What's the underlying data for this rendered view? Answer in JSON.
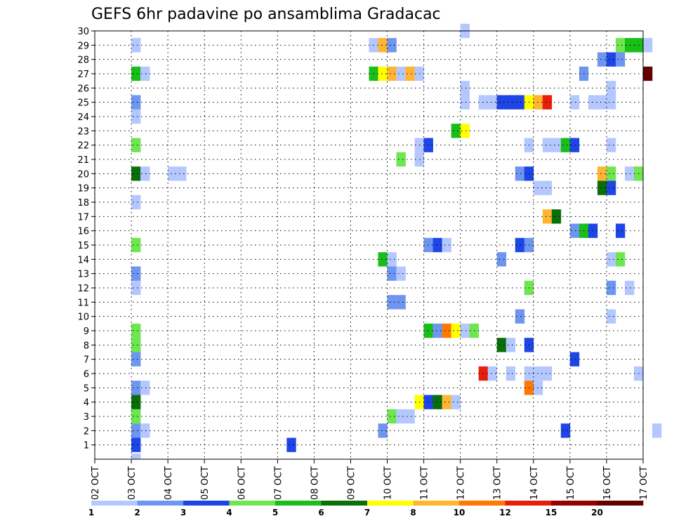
{
  "chart_data": {
    "type": "heatmap",
    "title": "GEFS 6hr padavine po ansamblima Gradacac",
    "x_tick_labels": [
      "02 OCT",
      "03 OCT",
      "04 OCT",
      "05 OCT",
      "06 OCT",
      "07 OCT",
      "08 OCT",
      "09 OCT",
      "10 OCT",
      "11 OCT",
      "12 OCT",
      "13 OCT",
      "14 OCT",
      "15 OCT",
      "16 OCT",
      "17 OCT"
    ],
    "y_tick_labels": [
      "1",
      "2",
      "3",
      "4",
      "5",
      "6",
      "7",
      "8",
      "9",
      "10",
      "11",
      "12",
      "13",
      "14",
      "15",
      "16",
      "17",
      "18",
      "19",
      "20",
      "21",
      "22",
      "23",
      "24",
      "25",
      "26",
      "27",
      "28",
      "29",
      "30"
    ],
    "x_range": [
      "02 OCT 00Z",
      "17 OCT 00Z"
    ],
    "steps_per_day": 4,
    "y_range": [
      0,
      30
    ],
    "grid": true,
    "grid_style": "dotted",
    "colorbar": {
      "placement": "bottom",
      "labels": [
        "1",
        "2",
        "3",
        "4",
        "5",
        "6",
        "7",
        "8",
        "10",
        "12",
        "15",
        "20"
      ],
      "colors": [
        "#b4c8ff",
        "#6e96f0",
        "#1e46e6",
        "#6ee650",
        "#19be19",
        "#0a6e0a",
        "#ffff00",
        "#ffb432",
        "#ff7800",
        "#e61e0a",
        "#960000",
        "#640000"
      ]
    },
    "cells": [
      [
        0,
        4,
        0
      ],
      [
        1,
        4,
        2
      ],
      [
        1,
        21,
        2
      ],
      [
        2,
        4,
        1
      ],
      [
        2,
        5,
        0
      ],
      [
        2,
        31,
        1
      ],
      [
        2,
        51,
        2
      ],
      [
        2,
        61,
        0
      ],
      [
        3,
        4,
        3
      ],
      [
        3,
        32,
        3
      ],
      [
        3,
        33,
        0
      ],
      [
        3,
        34,
        0
      ],
      [
        4,
        4,
        5
      ],
      [
        4,
        35,
        6
      ],
      [
        4,
        36,
        2
      ],
      [
        4,
        37,
        5
      ],
      [
        4,
        38,
        7
      ],
      [
        4,
        39,
        0
      ],
      [
        5,
        4,
        1
      ],
      [
        5,
        5,
        0
      ],
      [
        5,
        47,
        8
      ],
      [
        5,
        48,
        0
      ],
      [
        6,
        42,
        9
      ],
      [
        6,
        43,
        0
      ],
      [
        6,
        45,
        0
      ],
      [
        6,
        47,
        0
      ],
      [
        6,
        48,
        0
      ],
      [
        6,
        49,
        0
      ],
      [
        6,
        59,
        0
      ],
      [
        7,
        4,
        1
      ],
      [
        7,
        52,
        2
      ],
      [
        8,
        4,
        3
      ],
      [
        8,
        44,
        5
      ],
      [
        8,
        45,
        0
      ],
      [
        8,
        47,
        2
      ],
      [
        9,
        4,
        3
      ],
      [
        9,
        36,
        4
      ],
      [
        9,
        37,
        1
      ],
      [
        9,
        38,
        8
      ],
      [
        9,
        39,
        6
      ],
      [
        9,
        40,
        0
      ],
      [
        9,
        41,
        3
      ],
      [
        10,
        46,
        1
      ],
      [
        10,
        56,
        0
      ],
      [
        11,
        32,
        1
      ],
      [
        11,
        33,
        1
      ],
      [
        12,
        4,
        0
      ],
      [
        12,
        47,
        3
      ],
      [
        12,
        56,
        1
      ],
      [
        12,
        58,
        0
      ],
      [
        13,
        4,
        1
      ],
      [
        13,
        32,
        1
      ],
      [
        13,
        33,
        0
      ],
      [
        14,
        31,
        4
      ],
      [
        14,
        32,
        0
      ],
      [
        14,
        44,
        1
      ],
      [
        14,
        56,
        0
      ],
      [
        14,
        57,
        3
      ],
      [
        15,
        4,
        3
      ],
      [
        15,
        36,
        1
      ],
      [
        15,
        37,
        2
      ],
      [
        15,
        38,
        0
      ],
      [
        15,
        46,
        2
      ],
      [
        15,
        47,
        1
      ],
      [
        16,
        52,
        1
      ],
      [
        16,
        53,
        4
      ],
      [
        16,
        54,
        2
      ],
      [
        16,
        57,
        2
      ],
      [
        17,
        49,
        7
      ],
      [
        17,
        50,
        5
      ],
      [
        18,
        4,
        0
      ],
      [
        19,
        48,
        0
      ],
      [
        19,
        49,
        0
      ],
      [
        19,
        55,
        5
      ],
      [
        19,
        56,
        2
      ],
      [
        20,
        4,
        5
      ],
      [
        20,
        5,
        0
      ],
      [
        20,
        8,
        0
      ],
      [
        20,
        9,
        0
      ],
      [
        20,
        46,
        1
      ],
      [
        20,
        47,
        2
      ],
      [
        20,
        55,
        7
      ],
      [
        20,
        56,
        3
      ],
      [
        20,
        58,
        0
      ],
      [
        20,
        59,
        3
      ],
      [
        21,
        33,
        3
      ],
      [
        21,
        35,
        0
      ],
      [
        22,
        4,
        3
      ],
      [
        22,
        35,
        0
      ],
      [
        22,
        36,
        2
      ],
      [
        22,
        47,
        0
      ],
      [
        22,
        49,
        0
      ],
      [
        22,
        50,
        0
      ],
      [
        22,
        51,
        4
      ],
      [
        22,
        52,
        2
      ],
      [
        22,
        56,
        0
      ],
      [
        23,
        39,
        4
      ],
      [
        23,
        40,
        6
      ],
      [
        24,
        4,
        0
      ],
      [
        25,
        4,
        1
      ],
      [
        25,
        40,
        0
      ],
      [
        25,
        42,
        0
      ],
      [
        25,
        43,
        0
      ],
      [
        25,
        44,
        2
      ],
      [
        25,
        45,
        2
      ],
      [
        25,
        46,
        2
      ],
      [
        25,
        47,
        6
      ],
      [
        25,
        48,
        7
      ],
      [
        25,
        49,
        9
      ],
      [
        25,
        52,
        0
      ],
      [
        25,
        54,
        0
      ],
      [
        25,
        55,
        0
      ],
      [
        25,
        56,
        0
      ],
      [
        26,
        40,
        0
      ],
      [
        26,
        56,
        0
      ],
      [
        27,
        4,
        4
      ],
      [
        27,
        5,
        0
      ],
      [
        27,
        30,
        4
      ],
      [
        27,
        31,
        6
      ],
      [
        27,
        32,
        7
      ],
      [
        27,
        33,
        0
      ],
      [
        27,
        34,
        7
      ],
      [
        27,
        35,
        0
      ],
      [
        27,
        53,
        1
      ],
      [
        27,
        60,
        11
      ],
      [
        28,
        55,
        1
      ],
      [
        28,
        56,
        2
      ],
      [
        28,
        57,
        1
      ],
      [
        29,
        4,
        0
      ],
      [
        29,
        30,
        0
      ],
      [
        29,
        31,
        7
      ],
      [
        29,
        32,
        1
      ],
      [
        29,
        57,
        3
      ],
      [
        29,
        58,
        4
      ],
      [
        29,
        59,
        4
      ],
      [
        29,
        60,
        0
      ],
      [
        30,
        40,
        0
      ]
    ]
  }
}
